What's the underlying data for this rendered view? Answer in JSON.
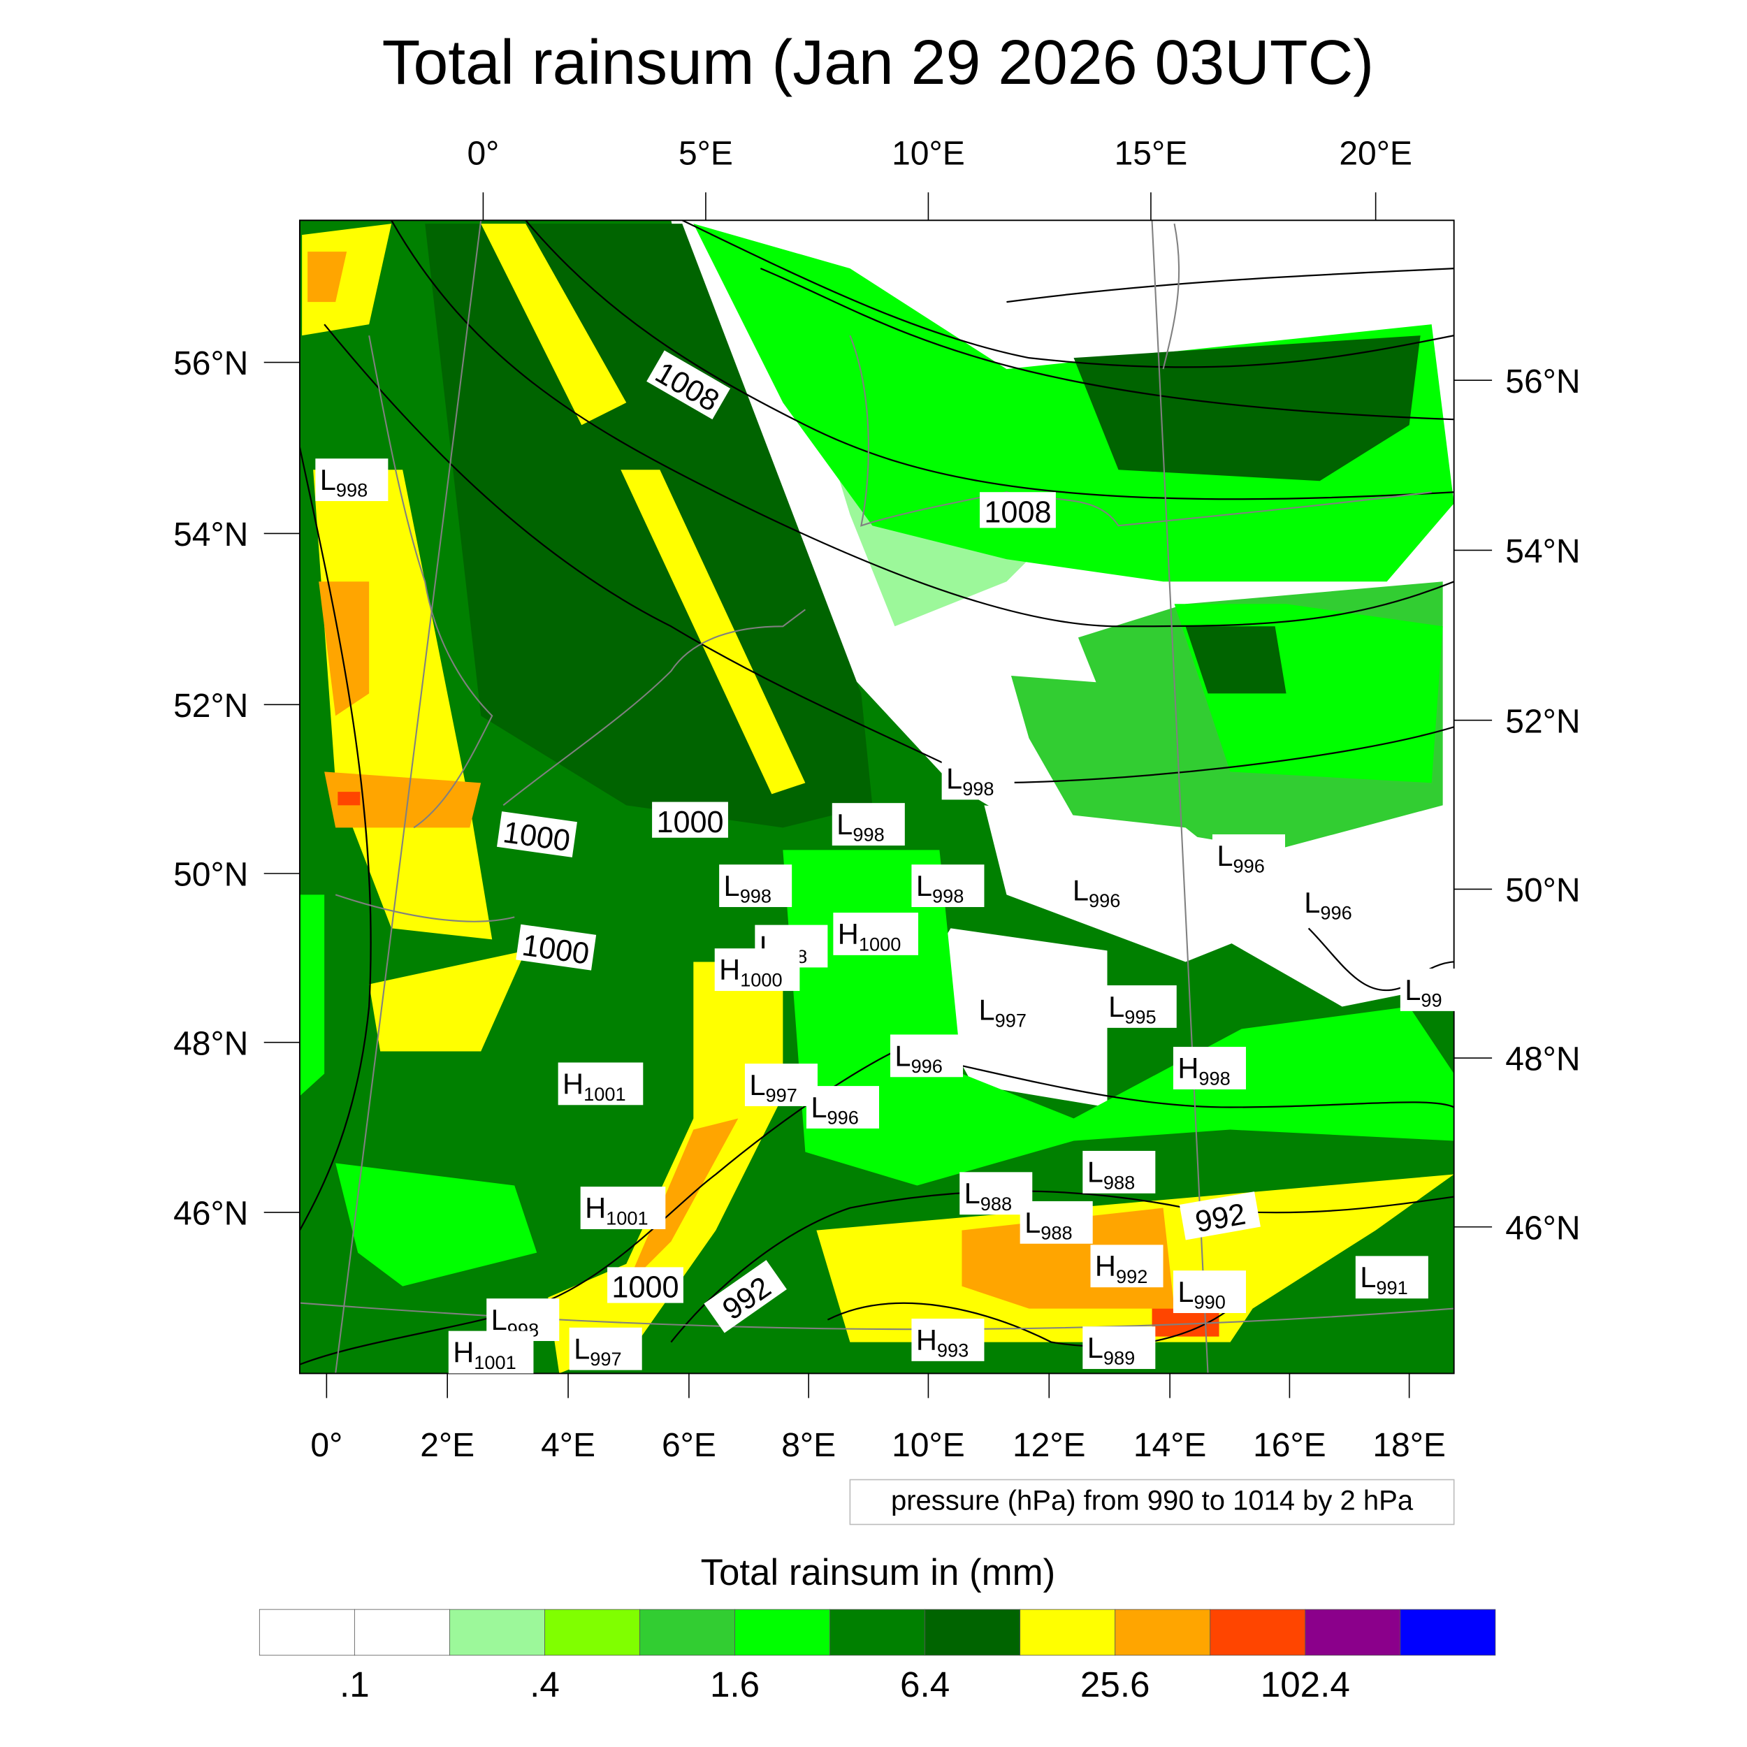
{
  "title": "Total rainsum (Jan 29 2026 03UTC)",
  "axes": {
    "top_lon": [
      "0°",
      "5°E",
      "10°E",
      "15°E",
      "20°E"
    ],
    "bottom_lon": [
      "0°",
      "2°E",
      "4°E",
      "6°E",
      "8°E",
      "10°E",
      "12°E",
      "14°E",
      "16°E",
      "18°E"
    ],
    "left_lat": [
      "56°N",
      "54°N",
      "52°N",
      "50°N",
      "48°N",
      "46°N"
    ],
    "right_lat": [
      "56°N",
      "54°N",
      "52°N",
      "50°N",
      "48°N",
      "46°N"
    ]
  },
  "contour_note": "pressure (hPa) from 990 to 1014 by 2 hPa",
  "contour_labels": [
    "1008",
    "1008",
    "1000",
    "1000",
    "1000",
    "992",
    "1000",
    "992"
  ],
  "pressure_centers": [
    {
      "type": "L",
      "value": "998"
    },
    {
      "type": "L",
      "value": "998"
    },
    {
      "type": "L",
      "value": "998"
    },
    {
      "type": "L",
      "value": "996"
    },
    {
      "type": "L",
      "value": "998"
    },
    {
      "type": "L",
      "value": "998"
    },
    {
      "type": "L",
      "value": "996"
    },
    {
      "type": "L",
      "value": "996"
    },
    {
      "type": "H",
      "value": "1000"
    },
    {
      "type": "L",
      "value": "998"
    },
    {
      "type": "H",
      "value": "1000"
    },
    {
      "type": "L",
      "value": "99"
    },
    {
      "type": "L",
      "value": "997"
    },
    {
      "type": "L",
      "value": "995"
    },
    {
      "type": "L",
      "value": "996"
    },
    {
      "type": "H",
      "value": "998"
    },
    {
      "type": "H",
      "value": "1001"
    },
    {
      "type": "L",
      "value": "997"
    },
    {
      "type": "L",
      "value": "996"
    },
    {
      "type": "L",
      "value": "988"
    },
    {
      "type": "L",
      "value": "988"
    },
    {
      "type": "L",
      "value": "988"
    },
    {
      "type": "H",
      "value": "1001"
    },
    {
      "type": "H",
      "value": "992"
    },
    {
      "type": "L",
      "value": "990"
    },
    {
      "type": "L",
      "value": "991"
    },
    {
      "type": "L",
      "value": "998"
    },
    {
      "type": "H",
      "value": "993"
    },
    {
      "type": "L",
      "value": "989"
    },
    {
      "type": "H",
      "value": "1001"
    },
    {
      "type": "L",
      "value": "997"
    }
  ],
  "legend": {
    "title": "Total rainsum in (mm)",
    "colors": [
      "#ffffff",
      "#ffffff",
      "#9cf89a",
      "#80ff00",
      "#32cd32",
      "#00ff00",
      "#008000",
      "#006400",
      "#ffff00",
      "#ffa500",
      "#ff4500",
      "#8b008b",
      "#0000ff"
    ],
    "labels": [
      ".1",
      ".4",
      "1.6",
      "6.4",
      "25.6",
      "102.4"
    ]
  }
}
